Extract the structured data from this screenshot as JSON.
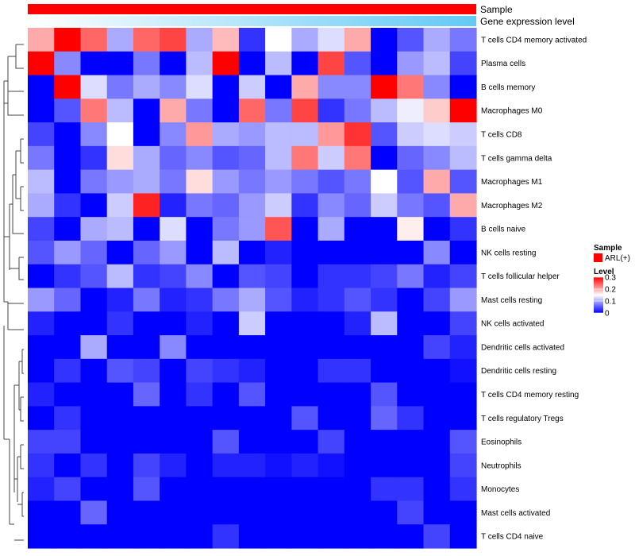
{
  "chart_data": {
    "type": "heatmap",
    "title": "",
    "annotation_tracks": [
      {
        "label": "Sample",
        "color": "#ff0000"
      },
      {
        "label": "Gene expression level",
        "gradient": [
          "#ffffff",
          "#62c9f5"
        ]
      }
    ],
    "rows": [
      "T cells CD4 memory activated",
      "Plasma cells",
      "B cells memory",
      "Macrophages M0",
      "T cells CD8",
      "T cells gamma delta",
      "Macrophages M1",
      "Macrophages M2",
      "B cells naive",
      "NK cells resting",
      "T cells follicular helper",
      "Mast cells resting",
      "NK cells activated",
      "Dendritic cells activated",
      "Dendritic cells resting",
      "T cells CD4 memory resting",
      "T cells regulatory  Tregs",
      "Eosinophils",
      "Neutrophils",
      "Monocytes",
      "Mast cells activated",
      "T cells CD4 naive"
    ],
    "n_columns": 17,
    "values": [
      [
        0.2,
        0.3,
        0.24,
        0.1,
        0.24,
        0.26,
        0.1,
        0.19,
        0.03,
        0.15,
        0.1,
        0.13,
        0.2,
        0.0,
        0.05,
        0.1,
        0.07
      ],
      [
        0.3,
        0.08,
        0.0,
        0.0,
        0.07,
        0.0,
        0.11,
        0.3,
        0.0,
        0.11,
        0.0,
        0.26,
        0.05,
        0.0,
        0.09,
        0.11,
        0.04
      ],
      [
        0.0,
        0.3,
        0.13,
        0.07,
        0.1,
        0.08,
        0.13,
        0.0,
        0.12,
        0.0,
        0.2,
        0.08,
        0.08,
        0.3,
        0.23,
        0.08,
        0.0
      ],
      [
        0.0,
        0.05,
        0.23,
        0.11,
        0.0,
        0.2,
        0.07,
        0.0,
        0.24,
        0.07,
        0.26,
        0.03,
        0.07,
        0.11,
        0.14,
        0.18,
        0.3
      ],
      [
        0.04,
        0.0,
        0.08,
        0.15,
        0.0,
        0.08,
        0.21,
        0.1,
        0.09,
        0.11,
        0.11,
        0.21,
        0.27,
        0.05,
        0.12,
        0.13,
        0.12
      ],
      [
        0.07,
        0.0,
        0.03,
        0.17,
        0.1,
        0.06,
        0.08,
        0.05,
        0.06,
        0.11,
        0.23,
        0.12,
        0.23,
        0.0,
        0.06,
        0.08,
        0.11
      ],
      [
        0.11,
        0.0,
        0.07,
        0.09,
        0.1,
        0.07,
        0.17,
        0.09,
        0.07,
        0.09,
        0.07,
        0.05,
        0.07,
        0.15,
        0.05,
        0.2,
        0.05
      ],
      [
        0.1,
        0.03,
        0.0,
        0.12,
        0.28,
        0.02,
        0.07,
        0.06,
        0.09,
        0.12,
        0.03,
        0.08,
        0.06,
        0.12,
        0.07,
        0.05,
        0.2
      ],
      [
        0.04,
        0.0,
        0.1,
        0.11,
        0.0,
        0.13,
        0.0,
        0.07,
        0.09,
        0.25,
        0.0,
        0.1,
        0.0,
        0.0,
        0.16,
        0.0,
        0.03
      ],
      [
        0.05,
        0.09,
        0.06,
        0.0,
        0.06,
        0.09,
        0.0,
        0.11,
        0.0,
        0.02,
        0.0,
        0.0,
        0.0,
        0.0,
        0.0,
        0.08,
        0.0
      ],
      [
        0.0,
        0.03,
        0.05,
        0.11,
        0.03,
        0.04,
        0.08,
        0.0,
        0.05,
        0.04,
        0.0,
        0.03,
        0.03,
        0.04,
        0.07,
        0.02,
        0.04
      ],
      [
        0.09,
        0.06,
        0.0,
        0.02,
        0.07,
        0.02,
        0.03,
        0.07,
        0.1,
        0.05,
        0.02,
        0.03,
        0.05,
        0.03,
        0.0,
        0.04,
        0.09
      ],
      [
        0.02,
        0.0,
        0.0,
        0.03,
        0.0,
        0.0,
        0.02,
        0.0,
        0.12,
        0.0,
        0.0,
        0.0,
        0.02,
        0.11,
        0.0,
        0.0,
        0.04
      ],
      [
        0.0,
        0.0,
        0.1,
        0.0,
        0.0,
        0.08,
        0.0,
        0.0,
        0.0,
        0.0,
        0.0,
        0.0,
        0.0,
        0.0,
        0.0,
        0.04,
        0.02
      ],
      [
        0.0,
        0.03,
        0.0,
        0.05,
        0.04,
        0.0,
        0.04,
        0.03,
        0.02,
        0.0,
        0.0,
        0.03,
        0.03,
        0.0,
        0.0,
        0.0,
        0.01
      ],
      [
        0.02,
        0.0,
        0.0,
        0.0,
        0.06,
        0.0,
        0.03,
        0.0,
        0.05,
        0.0,
        0.0,
        0.0,
        0.0,
        0.05,
        0.0,
        0.0,
        0.0
      ],
      [
        0.0,
        0.03,
        0.0,
        0.0,
        0.0,
        0.0,
        0.0,
        0.0,
        0.0,
        0.0,
        0.05,
        0.0,
        0.0,
        0.06,
        0.03,
        0.0,
        0.0
      ],
      [
        0.04,
        0.04,
        0.0,
        0.0,
        0.0,
        0.0,
        0.0,
        0.05,
        0.0,
        0.0,
        0.0,
        0.04,
        0.0,
        0.0,
        0.0,
        0.0,
        0.05
      ],
      [
        0.03,
        0.0,
        0.03,
        0.0,
        0.04,
        0.02,
        0.0,
        0.02,
        0.02,
        0.01,
        0.02,
        0.01,
        0.0,
        0.0,
        0.0,
        0.0,
        0.04
      ],
      [
        0.02,
        0.04,
        0.0,
        0.0,
        0.05,
        0.0,
        0.0,
        0.0,
        0.0,
        0.0,
        0.0,
        0.0,
        0.0,
        0.03,
        0.03,
        0.0,
        0.03
      ],
      [
        0.0,
        0.0,
        0.06,
        0.0,
        0.0,
        0.0,
        0.0,
        0.0,
        0.0,
        0.0,
        0.0,
        0.0,
        0.0,
        0.0,
        0.04,
        0.0,
        0.0
      ],
      [
        0.0,
        0.0,
        0.0,
        0.0,
        0.0,
        0.0,
        0.0,
        0.03,
        0.0,
        0.0,
        0.0,
        0.0,
        0.0,
        0.0,
        0.0,
        0.04,
        0.0
      ]
    ],
    "color_scale": {
      "low": "#0000ff",
      "mid": "#ffffff",
      "high": "#ff0000",
      "min": 0,
      "mid_value": 0.15,
      "max": 0.3
    },
    "legends": {
      "sample": {
        "title": "Sample",
        "items": [
          {
            "label": "ARL(+)",
            "color": "#ff0000"
          }
        ]
      },
      "level": {
        "title": "Level",
        "ticks": [
          {
            "value": 0.3,
            "label": "0.3"
          },
          {
            "value": 0.2,
            "label": "0.2"
          },
          {
            "value": 0.1,
            "label": "0.1"
          },
          {
            "value": 0,
            "label": "0"
          }
        ]
      }
    }
  }
}
